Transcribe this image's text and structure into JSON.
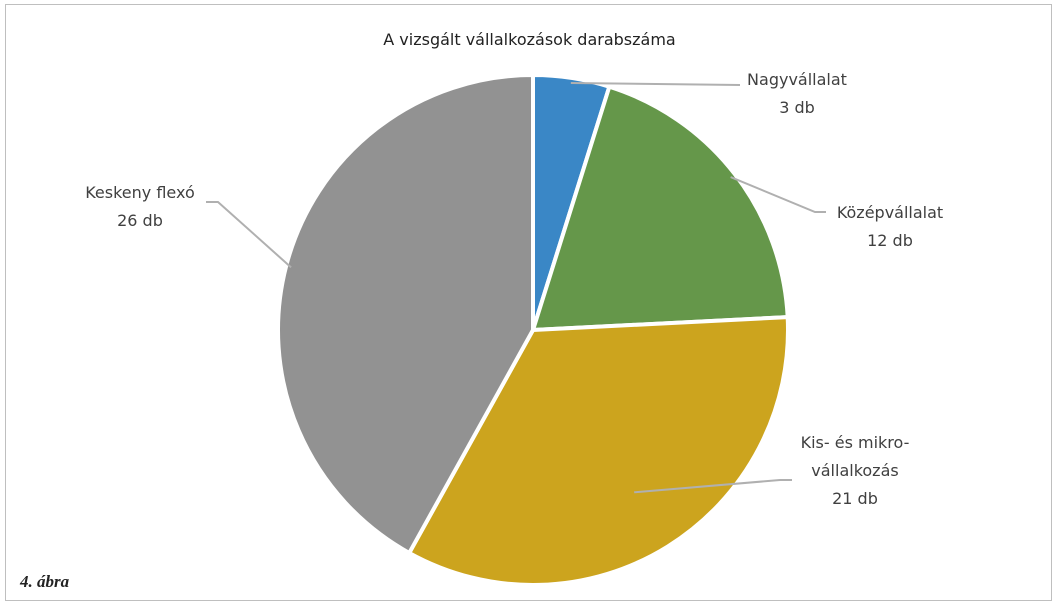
{
  "chart_data": {
    "type": "pie",
    "title": "A vizsgált vállalkozások darabszáma",
    "categories": [
      "Nagyvállalat",
      "Középvállalat",
      "Kis- és mikro-vállalkozás",
      "Keskeny flexó"
    ],
    "values": [
      3,
      12,
      21,
      26
    ],
    "value_labels": [
      "3 db",
      "12 db",
      "21 db",
      "26 db"
    ],
    "colors": [
      "#3a87c6",
      "#65974a",
      "#cca41e",
      "#929292"
    ]
  },
  "caption": "4. ábra"
}
